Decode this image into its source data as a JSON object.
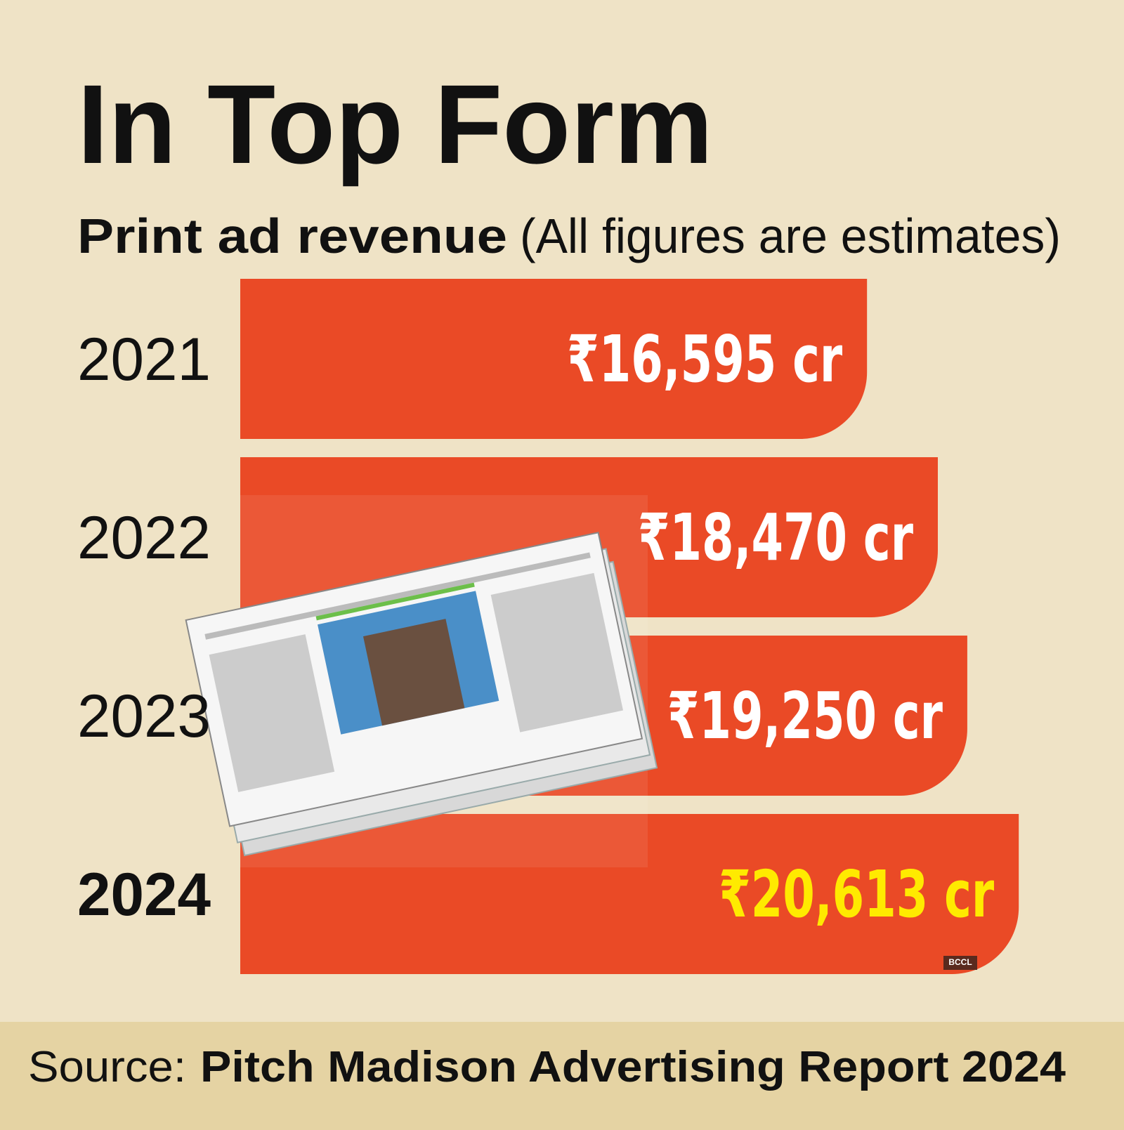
{
  "chart_data": {
    "type": "hbar",
    "title": "In Top Form",
    "subtitle": "Print ad revenue",
    "subtitle_note": "(All figures are estimates)",
    "categories": [
      "2021",
      "2022",
      "2023",
      "2024"
    ],
    "values": [
      16595,
      18470,
      19250,
      20613
    ],
    "value_labels": [
      "₹16,595 cr",
      "₹18,470 cr",
      "₹19,250 cr",
      "₹20,613 cr"
    ],
    "value_label_colors": [
      "#ffffff",
      "#ffffff",
      "#ffffff",
      "#ffea00"
    ],
    "color": "#ea4a26",
    "xlim": [
      0,
      21000
    ],
    "watermark": "BCCL",
    "source_label": "Source:",
    "source": "Pitch Madison Advertising Report 2024"
  }
}
